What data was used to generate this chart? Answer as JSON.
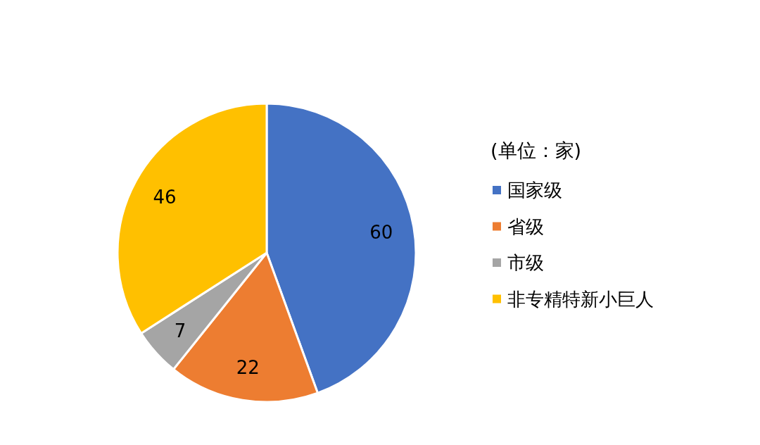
{
  "chart_data": {
    "type": "pie",
    "legend_title": "(单位：家)",
    "categories": [
      "国家级",
      "省级",
      "市级",
      "非专精特新小巨人"
    ],
    "values": [
      60,
      22,
      7,
      46
    ],
    "colors": [
      "#4472c4",
      "#ed7d31",
      "#a5a5a5",
      "#ffc000"
    ],
    "data_labels": true,
    "legend": "right"
  }
}
